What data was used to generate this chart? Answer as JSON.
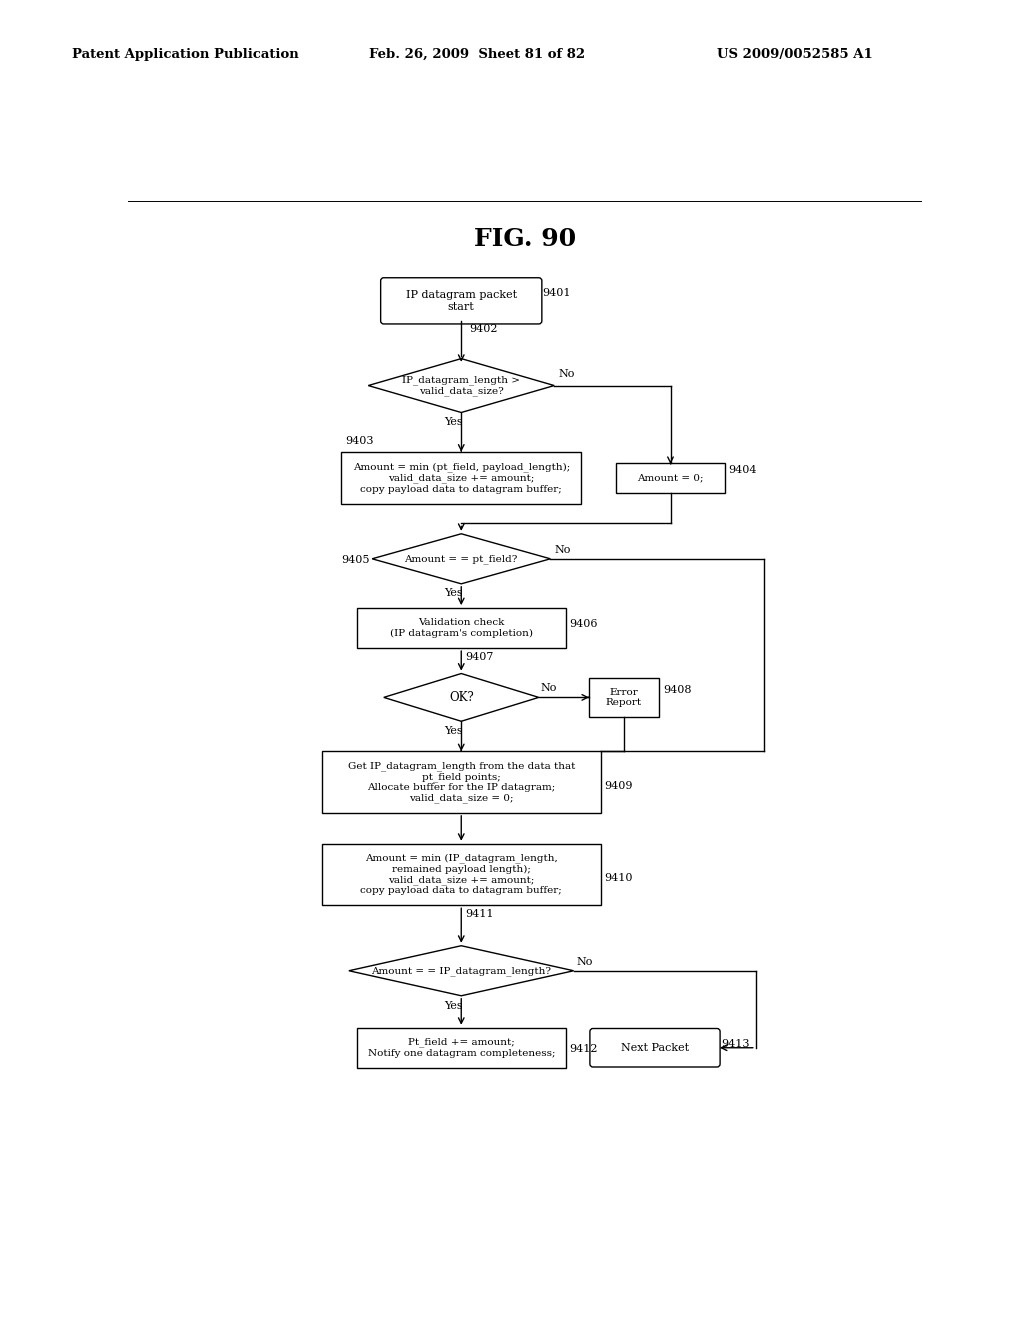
{
  "title": "FIG. 90",
  "header_left": "Patent Application Publication",
  "header_mid": "Feb. 26, 2009  Sheet 81 of 82",
  "header_right": "US 2009/0052585 A1",
  "bg_color": "#ffffff",
  "lw": 1.0,
  "fontsize_label": 7.5,
  "fontsize_ref": 8.0,
  "fontsize_yn": 8.0,
  "nodes": {
    "9401": {
      "label": "IP datagram packet\nstart"
    },
    "9402": {
      "label": "IP_datagram_length >\nvalid_data_size?"
    },
    "9403": {
      "label": "Amount = min (pt_field, payload_length);\nvalid_data_size += amount;\ncopy payload data to datagram buffer;"
    },
    "9404": {
      "label": "Amount = 0;"
    },
    "9405": {
      "label": "Amount = = pt_field?"
    },
    "9406": {
      "label": "Validation check\n(IP datagram's completion)"
    },
    "9407": {
      "label": "OK?"
    },
    "9408": {
      "label": "Error\nReport"
    },
    "9409": {
      "label": "Get IP_datagram_length from the data that\npt_field points;\nAllocate buffer for the IP datagram;\nvalid_data_size = 0;"
    },
    "9410": {
      "label": "Amount = min (IP_datagram_length,\nremained payload length);\nvalid_data_size += amount;\ncopy payload data to datagram buffer;"
    },
    "9411": {
      "label": "Amount = = IP_datagram_length?"
    },
    "9412": {
      "label": "Pt_field += amount;\nNotify one datagram completeness;"
    },
    "9413": {
      "label": "Next Packet"
    }
  }
}
